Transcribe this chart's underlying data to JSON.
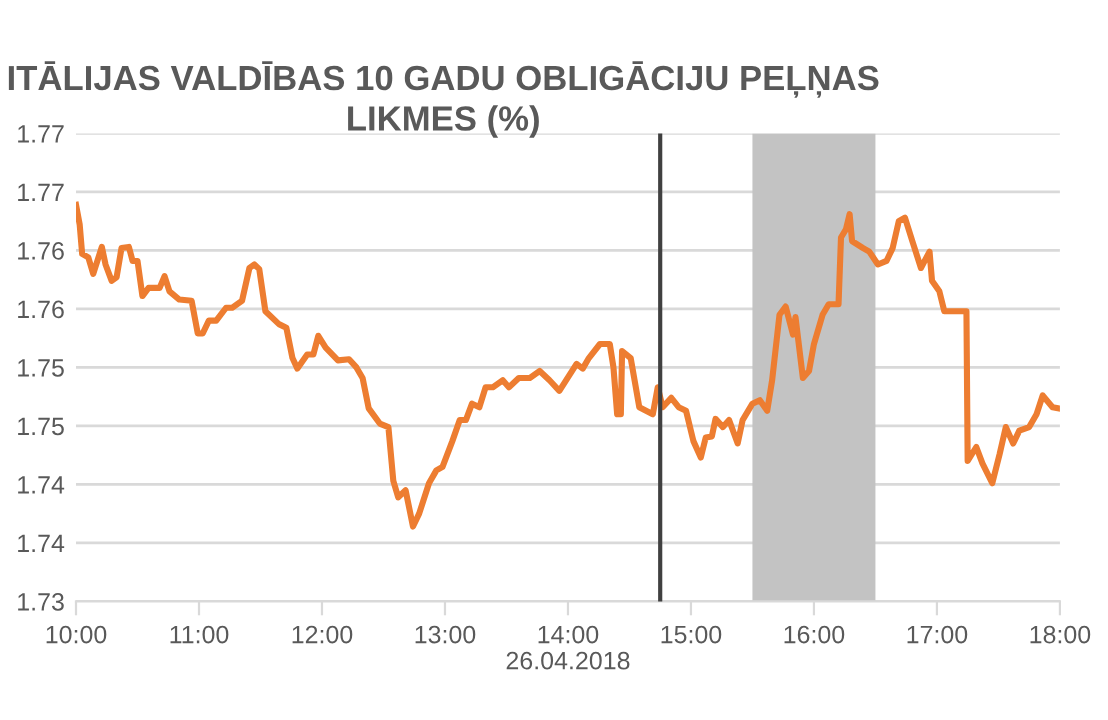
{
  "chart_data": {
    "type": "line",
    "title": "ITĀLIJAS VALDĪBAS 10 GADU OBLIGĀCIJU PEĻŅAS LIKMES (%)",
    "xlabel": "26.04.2018",
    "series": [
      {
        "color": "#ed7d31",
        "x": [
          10.0,
          10.03,
          10.05,
          10.1,
          10.14,
          10.21,
          10.24,
          10.29,
          10.33,
          10.37,
          10.43,
          10.46,
          10.5,
          10.54,
          10.59,
          10.68,
          10.72,
          10.76,
          10.84,
          10.94,
          10.99,
          11.03,
          11.08,
          11.14,
          11.22,
          11.27,
          11.35,
          11.41,
          11.45,
          11.49,
          11.54,
          11.65,
          11.71,
          11.76,
          11.8,
          11.88,
          11.93,
          11.97,
          12.03,
          12.13,
          12.22,
          12.28,
          12.33,
          12.38,
          12.47,
          12.54,
          12.58,
          12.62,
          12.68,
          12.74,
          12.79,
          12.87,
          12.93,
          12.98,
          13.06,
          13.12,
          13.17,
          13.22,
          13.28,
          13.33,
          13.39,
          13.47,
          13.52,
          13.6,
          13.69,
          13.77,
          13.85,
          13.93,
          14.07,
          14.12,
          14.17,
          14.26,
          14.34,
          14.37,
          14.4,
          14.43,
          14.44,
          14.51,
          14.58,
          14.69,
          14.73,
          14.77,
          14.84,
          14.9,
          14.96,
          15.02,
          15.08,
          15.12,
          15.17,
          15.2,
          15.26,
          15.31,
          15.38,
          15.42,
          15.5,
          15.56,
          15.62,
          15.66,
          15.72,
          15.77,
          15.83,
          15.85,
          15.91,
          15.96,
          16.0,
          16.07,
          16.12,
          16.2,
          16.22,
          16.26,
          16.29,
          16.31,
          16.4,
          16.45,
          16.52,
          16.59,
          16.64,
          16.69,
          16.74,
          16.8,
          16.87,
          16.94,
          16.96,
          17.02,
          17.06,
          17.24,
          17.25,
          17.32,
          17.37,
          17.45,
          17.51,
          17.56,
          17.62,
          17.67,
          17.75,
          17.81,
          17.86,
          17.94,
          17.99
        ],
        "values": [
          1.7639,
          1.7622,
          1.7597,
          1.7594,
          1.758,
          1.7603,
          1.7588,
          1.7574,
          1.7577,
          1.7602,
          1.7603,
          1.7591,
          1.7591,
          1.7561,
          1.7568,
          1.7568,
          1.7578,
          1.7565,
          1.7558,
          1.7557,
          1.7529,
          1.7529,
          1.754,
          1.754,
          1.7551,
          1.7551,
          1.7557,
          1.7585,
          1.7588,
          1.7584,
          1.7548,
          1.7537,
          1.7534,
          1.7508,
          1.7499,
          1.7511,
          1.7511,
          1.7527,
          1.7517,
          1.7506,
          1.7507,
          1.75,
          1.7491,
          1.7465,
          1.7452,
          1.7449,
          1.7403,
          1.7389,
          1.7395,
          1.7364,
          1.7375,
          1.7401,
          1.7412,
          1.7415,
          1.7437,
          1.7455,
          1.7455,
          1.7469,
          1.7466,
          1.7483,
          1.7483,
          1.7489,
          1.7483,
          1.7491,
          1.7491,
          1.7497,
          1.7489,
          1.748,
          1.7503,
          1.7499,
          1.7508,
          1.752,
          1.752,
          1.75,
          1.746,
          1.746,
          1.7514,
          1.7508,
          1.7466,
          1.746,
          1.7483,
          1.7466,
          1.7474,
          1.7466,
          1.7463,
          1.7437,
          1.7423,
          1.744,
          1.7441,
          1.7456,
          1.7449,
          1.7455,
          1.7435,
          1.7455,
          1.7469,
          1.7472,
          1.7463,
          1.7489,
          1.7545,
          1.7552,
          1.7528,
          1.7543,
          1.7491,
          1.7497,
          1.752,
          1.7545,
          1.7554,
          1.7554,
          1.7611,
          1.7618,
          1.7631,
          1.7608,
          1.7602,
          1.7599,
          1.7588,
          1.7591,
          1.7602,
          1.7625,
          1.7628,
          1.7608,
          1.7585,
          1.7599,
          1.7574,
          1.7565,
          1.7548,
          1.7548,
          1.742,
          1.7432,
          1.7418,
          1.7401,
          1.7426,
          1.7449,
          1.7435,
          1.7446,
          1.7449,
          1.746,
          1.7476,
          1.7466,
          1.7465
        ]
      }
    ],
    "xlim": [
      10,
      18
    ],
    "xticks": [
      {
        "value": 10,
        "label": "10:00"
      },
      {
        "value": 11,
        "label": "11:00"
      },
      {
        "value": 12,
        "label": "12:00"
      },
      {
        "value": 13,
        "label": "13:00"
      },
      {
        "value": 14,
        "label": "14:00"
      },
      {
        "value": 15,
        "label": "15:00"
      },
      {
        "value": 16,
        "label": "16:00"
      },
      {
        "value": 17,
        "label": "17:00"
      },
      {
        "value": 18,
        "label": "18:00"
      }
    ],
    "ylim": [
      1.73,
      1.77
    ],
    "yticks": [
      {
        "value": 1.73,
        "label": "1.73"
      },
      {
        "value": 1.735,
        "label": "1.74"
      },
      {
        "value": 1.74,
        "label": "1.74"
      },
      {
        "value": 1.745,
        "label": "1.75"
      },
      {
        "value": 1.75,
        "label": "1.75"
      },
      {
        "value": 1.755,
        "label": "1.76"
      },
      {
        "value": 1.76,
        "label": "1.76"
      },
      {
        "value": 1.765,
        "label": "1.77"
      },
      {
        "value": 1.77,
        "label": "1.77"
      }
    ],
    "grid": "y",
    "ref_lines": [
      {
        "axis": "x",
        "value": 14.75,
        "color": "#404040"
      }
    ],
    "bands": [
      {
        "axis": "x",
        "from": 15.5,
        "to": 16.5,
        "color": "#c3c3c3"
      }
    ]
  }
}
